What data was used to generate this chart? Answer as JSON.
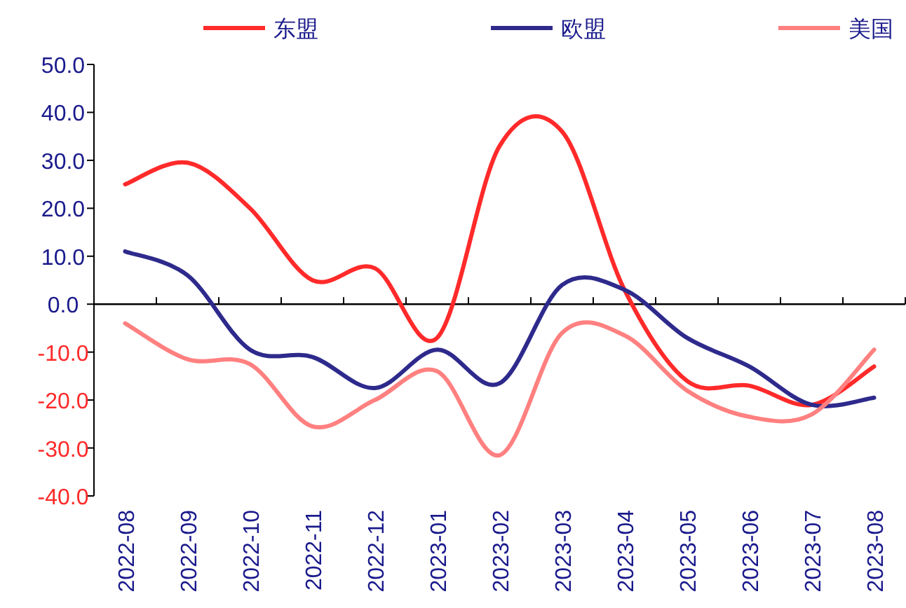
{
  "chart_data": {
    "type": "line",
    "categories": [
      "2022-08",
      "2022-09",
      "2022-10",
      "2022-11",
      "2022-12",
      "2023-01",
      "2023-02",
      "2023-03",
      "2023-04",
      "2023-05",
      "2023-06",
      "2023-07",
      "2023-08"
    ],
    "series": [
      {
        "name": "东盟",
        "color": "#ff2a2a",
        "values": [
          25,
          29.5,
          20,
          5,
          7.5,
          -7,
          33,
          36,
          3,
          -16,
          -17,
          -21,
          -13
        ]
      },
      {
        "name": "欧盟",
        "color": "#2e2a8c",
        "values": [
          11,
          6,
          -9.5,
          -11,
          -17.5,
          -9.5,
          -16.5,
          4,
          3,
          -7,
          -13,
          -21,
          -19.5
        ]
      },
      {
        "name": "美国",
        "color": "#ff8080",
        "values": [
          -4,
          -11.5,
          -12.5,
          -25.5,
          -20,
          -14,
          -31.5,
          -6,
          -6.5,
          -18,
          -23.5,
          -23,
          -9.5
        ]
      }
    ],
    "ylim": [
      -40,
      50
    ],
    "yticks": [
      {
        "value": -40,
        "label": "-40.0"
      },
      {
        "value": -30,
        "label": "-30.0"
      },
      {
        "value": -20,
        "label": "-20.0"
      },
      {
        "value": -10,
        "label": "-10.0"
      },
      {
        "value": 0,
        "label": "0.0"
      },
      {
        "value": 10,
        "label": "10.0"
      },
      {
        "value": 20,
        "label": "20.0"
      },
      {
        "value": 30,
        "label": "30.0"
      },
      {
        "value": 40,
        "label": "40.0"
      },
      {
        "value": 50,
        "label": "50.0"
      }
    ],
    "legend": "top",
    "marker": "none",
    "line_style": "solid"
  }
}
